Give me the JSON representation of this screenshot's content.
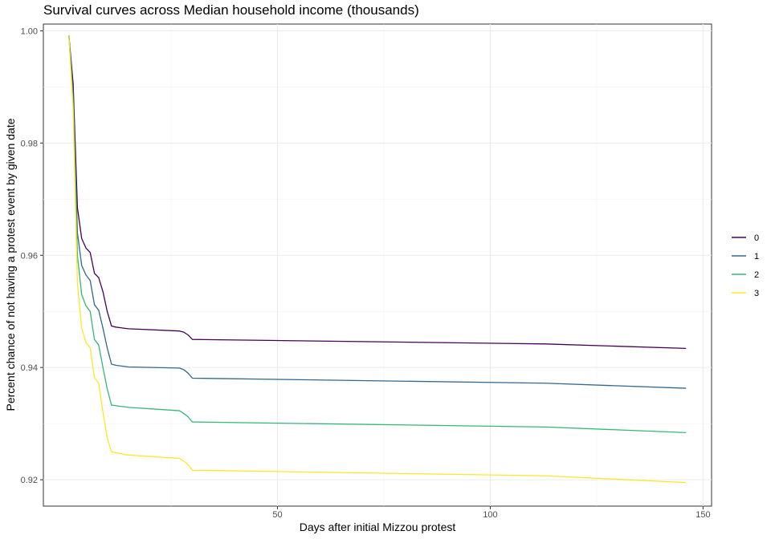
{
  "chart_data": {
    "type": "line",
    "title": "Survival curves across Median household income (thousands)",
    "xlabel": "Days after initial Mizzou protest",
    "ylabel": "Percent chance of not having a protest event by given date",
    "xlim": [
      -5,
      152
    ],
    "ylim": [
      0.9153,
      1.0012
    ],
    "x_ticks": [
      50,
      100,
      150
    ],
    "x_tick_labels": [
      "50",
      "100",
      "150"
    ],
    "y_ticks": [
      0.92,
      0.94,
      0.96,
      0.98,
      1.0
    ],
    "y_tick_labels": [
      "0.92",
      "0.94",
      "0.96",
      "0.98",
      "1.00"
    ],
    "grid": true,
    "legend_position": "right",
    "colors": [
      "#440154",
      "#31688e",
      "#35b779",
      "#fde725"
    ],
    "x": [
      1,
      2,
      3,
      4,
      5,
      6,
      7,
      8,
      9,
      10,
      11,
      12,
      13,
      14,
      15,
      27,
      28,
      29,
      30,
      113,
      146
    ],
    "series": [
      {
        "name": "0",
        "values": [
          0.9991,
          0.9905,
          0.9685,
          0.963,
          0.9613,
          0.9605,
          0.9568,
          0.956,
          0.9535,
          0.95,
          0.9474,
          0.9472,
          0.9471,
          0.947,
          0.9469,
          0.9465,
          0.9463,
          0.9458,
          0.945,
          0.9442,
          0.9434
        ]
      },
      {
        "name": "1",
        "values": [
          0.9991,
          0.9885,
          0.964,
          0.9582,
          0.9565,
          0.9555,
          0.9512,
          0.9502,
          0.947,
          0.9435,
          0.9406,
          0.9404,
          0.9403,
          0.9402,
          0.9401,
          0.9399,
          0.9396,
          0.939,
          0.9381,
          0.9372,
          0.9363
        ]
      },
      {
        "name": "2",
        "values": [
          0.999,
          0.987,
          0.96,
          0.953,
          0.951,
          0.95,
          0.945,
          0.944,
          0.94,
          0.9362,
          0.9333,
          0.9332,
          0.9331,
          0.933,
          0.9329,
          0.9323,
          0.9318,
          0.9312,
          0.9303,
          0.9294,
          0.9284
        ]
      },
      {
        "name": "3",
        "values": [
          0.999,
          0.986,
          0.955,
          0.947,
          0.9445,
          0.9435,
          0.9382,
          0.9372,
          0.932,
          0.9275,
          0.925,
          0.9248,
          0.9247,
          0.9245,
          0.9244,
          0.9238,
          0.9233,
          0.9227,
          0.9217,
          0.9207,
          0.9195
        ]
      }
    ]
  }
}
